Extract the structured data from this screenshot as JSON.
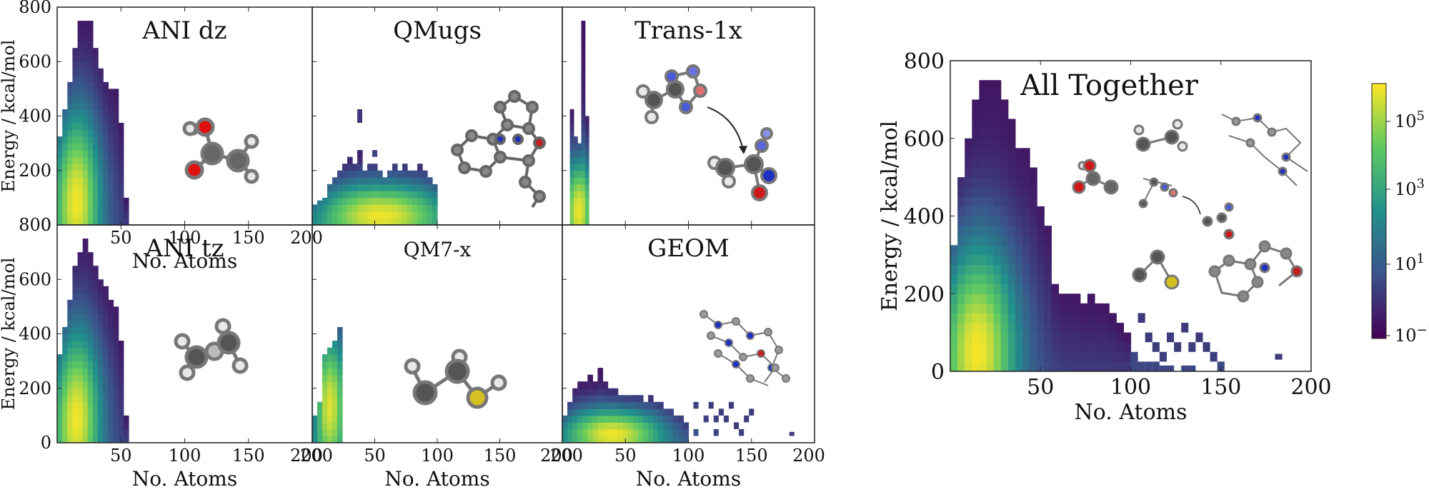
{
  "figure": {
    "colorbar": {
      "scale": "log",
      "tick_labels": [
        "10^5",
        "10^3",
        "10^1",
        "10^−1"
      ],
      "colormap": "viridis",
      "colors": [
        "#440154",
        "#3b528b",
        "#21918c",
        "#5ec962",
        "#fde725"
      ]
    }
  },
  "chart_data": [
    {
      "type": "heatmap",
      "title": "ANI dz",
      "xlabel": "No. Atoms",
      "ylabel": "Energy / kcal/mol",
      "xlim": [
        0,
        200
      ],
      "ylim": [
        0,
        800
      ],
      "xticks": [
        "50",
        "100",
        "150",
        "200"
      ],
      "yticks": [
        "0",
        "200",
        "400",
        "600",
        "800"
      ],
      "show_xlabel": true,
      "show_ylabel": true,
      "show_xticklabels": true,
      "show_yticklabels": true,
      "bin_x": 4,
      "bin_y": 25,
      "cols": [
        {
          "x0": 0,
          "x1": 4,
          "top": 325
        },
        {
          "x0": 4,
          "x1": 8,
          "top": 425
        },
        {
          "x0": 8,
          "x1": 12,
          "top": 525
        },
        {
          "x0": 12,
          "x1": 16,
          "top": 650
        },
        {
          "x0": 16,
          "x1": 20,
          "top": 750
        },
        {
          "x0": 20,
          "x1": 24,
          "top": 750
        },
        {
          "x0": 24,
          "x1": 28,
          "top": 750
        },
        {
          "x0": 28,
          "x1": 32,
          "top": 650
        },
        {
          "x0": 32,
          "x1": 36,
          "top": 575
        },
        {
          "x0": 36,
          "x1": 40,
          "top": 525
        },
        {
          "x0": 40,
          "x1": 44,
          "top": 500
        },
        {
          "x0": 44,
          "x1": 48,
          "top": 500
        },
        {
          "x0": 48,
          "x1": 52,
          "top": 375
        },
        {
          "x0": 52,
          "x1": 56,
          "top": 100
        }
      ],
      "peak": {
        "x": 15,
        "y": 100,
        "rx": 14,
        "ry": 240
      }
    },
    {
      "type": "heatmap",
      "title": "QMugs",
      "xlabel": "No. Atoms",
      "ylabel": "Energy / kcal/mol",
      "xlim": [
        0,
        200
      ],
      "ylim": [
        0,
        800
      ],
      "xticks": [
        "50",
        "100",
        "150",
        "200"
      ],
      "yticks": [
        "0",
        "200",
        "400",
        "600",
        "800"
      ],
      "show_xlabel": false,
      "show_ylabel": false,
      "show_xticklabels": false,
      "show_yticklabels": false,
      "bin_x": 4,
      "bin_y": 25,
      "cols": [
        {
          "x0": 0,
          "x1": 4,
          "top": 75
        },
        {
          "x0": 4,
          "x1": 8,
          "top": 90
        },
        {
          "x0": 8,
          "x1": 12,
          "top": 100
        },
        {
          "x0": 12,
          "x1": 16,
          "top": 150
        },
        {
          "x0": 16,
          "x1": 20,
          "top": 175
        },
        {
          "x0": 20,
          "x1": 24,
          "top": 200
        },
        {
          "x0": 24,
          "x1": 28,
          "top": 225
        },
        {
          "x0": 28,
          "x1": 32,
          "top": 250
        },
        {
          "x0": 32,
          "x1": 36,
          "top": 225
        },
        {
          "x0": 36,
          "x1": 40,
          "top": 275
        },
        {
          "x0": 40,
          "x1": 44,
          "top": 200
        },
        {
          "x0": 44,
          "x1": 48,
          "top": 225
        },
        {
          "x0": 48,
          "x1": 52,
          "top": 225
        },
        {
          "x0": 52,
          "x1": 56,
          "top": 200
        },
        {
          "x0": 56,
          "x1": 60,
          "top": 175
        },
        {
          "x0": 60,
          "x1": 64,
          "top": 200
        },
        {
          "x0": 64,
          "x1": 68,
          "top": 225
        },
        {
          "x0": 68,
          "x1": 72,
          "top": 200
        },
        {
          "x0": 72,
          "x1": 76,
          "top": 225
        },
        {
          "x0": 76,
          "x1": 80,
          "top": 200
        },
        {
          "x0": 80,
          "x1": 84,
          "top": 200
        },
        {
          "x0": 84,
          "x1": 88,
          "top": 225
        },
        {
          "x0": 88,
          "x1": 92,
          "top": 200
        },
        {
          "x0": 92,
          "x1": 96,
          "top": 175
        },
        {
          "x0": 96,
          "x1": 100,
          "top": 150
        }
      ],
      "outliers": [
        {
          "x0": 36,
          "x1": 40,
          "y0": 375,
          "y1": 425
        },
        {
          "x0": 48,
          "x1": 52,
          "y0": 250,
          "y1": 275
        }
      ],
      "peak": {
        "x": 55,
        "y": 40,
        "rx": 40,
        "ry": 90
      }
    },
    {
      "type": "heatmap",
      "title": "Trans-1x",
      "xlabel": "No. Atoms",
      "ylabel": "Energy / kcal/mol",
      "xlim": [
        0,
        200
      ],
      "ylim": [
        0,
        800
      ],
      "xticks": [
        "50",
        "100",
        "150",
        "200"
      ],
      "yticks": [
        "0",
        "200",
        "400",
        "600",
        "800"
      ],
      "show_xlabel": false,
      "show_ylabel": false,
      "show_xticklabels": false,
      "show_yticklabels": false,
      "bin_x": 3,
      "bin_y": 25,
      "cols": [
        {
          "x0": 6,
          "x1": 9,
          "top": 425
        },
        {
          "x0": 9,
          "x1": 12,
          "top": 325
        },
        {
          "x0": 12,
          "x1": 15,
          "top": 300
        },
        {
          "x0": 15,
          "x1": 18,
          "top": 750
        },
        {
          "x0": 18,
          "x1": 21,
          "top": 400
        }
      ],
      "peak": {
        "x": 13,
        "y": 60,
        "rx": 8,
        "ry": 140
      }
    },
    {
      "type": "heatmap",
      "title": "ANI tz",
      "xlabel": "No. Atoms",
      "ylabel": "Energy / kcal/mol",
      "xlim": [
        0,
        200
      ],
      "ylim": [
        0,
        800
      ],
      "xticks": [
        "50",
        "100",
        "150",
        "200"
      ],
      "yticks": [
        "0",
        "200",
        "400",
        "600",
        "800"
      ],
      "show_xlabel": true,
      "show_ylabel": true,
      "show_xticklabels": true,
      "show_yticklabels": true,
      "bin_x": 4,
      "bin_y": 25,
      "cols": [
        {
          "x0": 0,
          "x1": 4,
          "top": 325
        },
        {
          "x0": 4,
          "x1": 8,
          "top": 425
        },
        {
          "x0": 8,
          "x1": 12,
          "top": 525
        },
        {
          "x0": 12,
          "x1": 16,
          "top": 650
        },
        {
          "x0": 16,
          "x1": 20,
          "top": 700
        },
        {
          "x0": 20,
          "x1": 24,
          "top": 750
        },
        {
          "x0": 24,
          "x1": 28,
          "top": 700
        },
        {
          "x0": 28,
          "x1": 32,
          "top": 650
        },
        {
          "x0": 32,
          "x1": 36,
          "top": 600
        },
        {
          "x0": 36,
          "x1": 40,
          "top": 575
        },
        {
          "x0": 40,
          "x1": 44,
          "top": 525
        },
        {
          "x0": 44,
          "x1": 48,
          "top": 500
        },
        {
          "x0": 48,
          "x1": 52,
          "top": 375
        },
        {
          "x0": 52,
          "x1": 56,
          "top": 100
        }
      ],
      "peak": {
        "x": 15,
        "y": 100,
        "rx": 14,
        "ry": 240
      }
    },
    {
      "type": "heatmap",
      "title": "QM7-x",
      "xlabel": "No. Atoms",
      "ylabel": "Energy / kcal/mol",
      "xlim": [
        0,
        200
      ],
      "ylim": [
        0,
        800
      ],
      "xticks": [
        "200",
        "50",
        "100",
        "150",
        "200"
      ],
      "yticks": [
        "0",
        "200",
        "400",
        "600",
        "800"
      ],
      "show_xlabel": true,
      "show_ylabel": false,
      "show_xticklabels": true,
      "show_yticklabels": false,
      "bin_x": 4,
      "bin_y": 25,
      "cols": [
        {
          "x0": 0,
          "x1": 4,
          "top": 100
        },
        {
          "x0": 4,
          "x1": 8,
          "top": 150
        },
        {
          "x0": 8,
          "x1": 12,
          "top": 325
        },
        {
          "x0": 12,
          "x1": 16,
          "top": 350
        },
        {
          "x0": 16,
          "x1": 20,
          "top": 375
        },
        {
          "x0": 20,
          "x1": 24,
          "top": 425
        }
      ],
      "peak": {
        "x": 14,
        "y": 150,
        "rx": 10,
        "ry": 200
      }
    },
    {
      "type": "heatmap",
      "title": "GEOM",
      "xlabel": "No. Atoms",
      "ylabel": "Energy / kcal/mol",
      "xlim": [
        0,
        200
      ],
      "ylim": [
        0,
        800
      ],
      "xticks": [
        "200",
        "50",
        "100",
        "150",
        "200"
      ],
      "yticks": [
        "0",
        "200",
        "400",
        "600",
        "800"
      ],
      "show_xlabel": true,
      "show_ylabel": false,
      "show_xticklabels": true,
      "show_yticklabels": false,
      "bin_x": 4,
      "bin_y": 25,
      "cols": [
        {
          "x0": 0,
          "x1": 4,
          "top": 100
        },
        {
          "x0": 4,
          "x1": 8,
          "top": 150
        },
        {
          "x0": 8,
          "x1": 12,
          "top": 200
        },
        {
          "x0": 12,
          "x1": 16,
          "top": 225
        },
        {
          "x0": 16,
          "x1": 20,
          "top": 225
        },
        {
          "x0": 20,
          "x1": 24,
          "top": 250
        },
        {
          "x0": 24,
          "x1": 28,
          "top": 225
        },
        {
          "x0": 28,
          "x1": 32,
          "top": 275
        },
        {
          "x0": 32,
          "x1": 36,
          "top": 225
        },
        {
          "x0": 36,
          "x1": 40,
          "top": 200
        },
        {
          "x0": 40,
          "x1": 44,
          "top": 200
        },
        {
          "x0": 44,
          "x1": 48,
          "top": 175
        },
        {
          "x0": 48,
          "x1": 52,
          "top": 175
        },
        {
          "x0": 52,
          "x1": 56,
          "top": 175
        },
        {
          "x0": 56,
          "x1": 60,
          "top": 175
        },
        {
          "x0": 60,
          "x1": 64,
          "top": 175
        },
        {
          "x0": 64,
          "x1": 68,
          "top": 150
        },
        {
          "x0": 68,
          "x1": 72,
          "top": 175
        },
        {
          "x0": 72,
          "x1": 76,
          "top": 150
        },
        {
          "x0": 76,
          "x1": 80,
          "top": 150
        },
        {
          "x0": 80,
          "x1": 84,
          "top": 125
        },
        {
          "x0": 84,
          "x1": 88,
          "top": 125
        },
        {
          "x0": 88,
          "x1": 92,
          "top": 100
        },
        {
          "x0": 92,
          "x1": 96,
          "top": 100
        },
        {
          "x0": 96,
          "x1": 100,
          "top": 75
        }
      ],
      "outliers": [
        {
          "x0": 104,
          "x1": 108,
          "y0": 125,
          "y1": 150
        },
        {
          "x0": 112,
          "x1": 116,
          "y0": 75,
          "y1": 100
        },
        {
          "x0": 116,
          "x1": 120,
          "y0": 125,
          "y1": 150
        },
        {
          "x0": 120,
          "x1": 124,
          "y0": 75,
          "y1": 100
        },
        {
          "x0": 124,
          "x1": 128,
          "y0": 100,
          "y1": 125
        },
        {
          "x0": 128,
          "x1": 132,
          "y0": 75,
          "y1": 100
        },
        {
          "x0": 132,
          "x1": 136,
          "y0": 125,
          "y1": 150
        },
        {
          "x0": 136,
          "x1": 140,
          "y0": 50,
          "y1": 75
        },
        {
          "x0": 144,
          "x1": 148,
          "y0": 75,
          "y1": 100
        },
        {
          "x0": 148,
          "x1": 152,
          "y0": 100,
          "y1": 125
        },
        {
          "x0": 104,
          "x1": 108,
          "y0": 25,
          "y1": 50
        },
        {
          "x0": 120,
          "x1": 124,
          "y0": 25,
          "y1": 50
        },
        {
          "x0": 140,
          "x1": 144,
          "y0": 25,
          "y1": 50
        },
        {
          "x0": 180,
          "x1": 184,
          "y0": 25,
          "y1": 40
        }
      ],
      "peak": {
        "x": 40,
        "y": 35,
        "rx": 30,
        "ry": 70
      }
    },
    {
      "type": "heatmap",
      "title": "All Together",
      "xlabel": "No. Atoms",
      "ylabel": "Energy / kcal/mol",
      "xlim": [
        0,
        200
      ],
      "ylim": [
        0,
        800
      ],
      "xticks": [
        "50",
        "100",
        "150",
        "200"
      ],
      "yticks": [
        "0",
        "200",
        "400",
        "600",
        "800"
      ],
      "show_xlabel": true,
      "show_ylabel": true,
      "show_xticklabels": true,
      "show_yticklabels": true,
      "bin_x": 4,
      "bin_y": 25,
      "cols": [
        {
          "x0": 0,
          "x1": 4,
          "top": 325
        },
        {
          "x0": 4,
          "x1": 8,
          "top": 500
        },
        {
          "x0": 8,
          "x1": 12,
          "top": 600
        },
        {
          "x0": 12,
          "x1": 16,
          "top": 700
        },
        {
          "x0": 16,
          "x1": 20,
          "top": 750
        },
        {
          "x0": 20,
          "x1": 24,
          "top": 750
        },
        {
          "x0": 24,
          "x1": 28,
          "top": 750
        },
        {
          "x0": 28,
          "x1": 32,
          "top": 700
        },
        {
          "x0": 32,
          "x1": 36,
          "top": 650
        },
        {
          "x0": 36,
          "x1": 40,
          "top": 575
        },
        {
          "x0": 40,
          "x1": 44,
          "top": 575
        },
        {
          "x0": 44,
          "x1": 48,
          "top": 525
        },
        {
          "x0": 48,
          "x1": 52,
          "top": 425
        },
        {
          "x0": 52,
          "x1": 56,
          "top": 375
        },
        {
          "x0": 56,
          "x1": 60,
          "top": 225
        },
        {
          "x0": 60,
          "x1": 64,
          "top": 200
        },
        {
          "x0": 64,
          "x1": 68,
          "top": 200
        },
        {
          "x0": 68,
          "x1": 72,
          "top": 200
        },
        {
          "x0": 72,
          "x1": 76,
          "top": 175
        },
        {
          "x0": 76,
          "x1": 80,
          "top": 200
        },
        {
          "x0": 80,
          "x1": 84,
          "top": 175
        },
        {
          "x0": 84,
          "x1": 88,
          "top": 175
        },
        {
          "x0": 88,
          "x1": 92,
          "top": 150
        },
        {
          "x0": 92,
          "x1": 96,
          "top": 125
        },
        {
          "x0": 96,
          "x1": 100,
          "top": 100
        }
      ],
      "outliers": [
        {
          "x0": 104,
          "x1": 108,
          "y0": 125,
          "y1": 150
        },
        {
          "x0": 108,
          "x1": 112,
          "y0": 75,
          "y1": 100
        },
        {
          "x0": 112,
          "x1": 116,
          "y0": 50,
          "y1": 75
        },
        {
          "x0": 116,
          "x1": 120,
          "y0": 25,
          "y1": 50
        },
        {
          "x0": 120,
          "x1": 124,
          "y0": 75,
          "y1": 100
        },
        {
          "x0": 124,
          "x1": 128,
          "y0": 50,
          "y1": 75
        },
        {
          "x0": 128,
          "x1": 132,
          "y0": 100,
          "y1": 125
        },
        {
          "x0": 132,
          "x1": 136,
          "y0": 50,
          "y1": 75
        },
        {
          "x0": 136,
          "x1": 140,
          "y0": 75,
          "y1": 100
        },
        {
          "x0": 140,
          "x1": 144,
          "y0": 50,
          "y1": 75
        },
        {
          "x0": 144,
          "x1": 148,
          "y0": 25,
          "y1": 50
        },
        {
          "x0": 148,
          "x1": 152,
          "y0": 0,
          "y1": 25
        },
        {
          "x0": 100,
          "x1": 104,
          "y0": 0,
          "y1": 50
        },
        {
          "x0": 104,
          "x1": 108,
          "y0": 0,
          "y1": 25
        },
        {
          "x0": 108,
          "x1": 112,
          "y0": 0,
          "y1": 25
        },
        {
          "x0": 112,
          "x1": 116,
          "y0": 0,
          "y1": 25
        },
        {
          "x0": 116,
          "x1": 120,
          "y0": 0,
          "y1": 15
        },
        {
          "x0": 120,
          "x1": 124,
          "y0": 0,
          "y1": 15
        },
        {
          "x0": 128,
          "x1": 132,
          "y0": 0,
          "y1": 15
        },
        {
          "x0": 132,
          "x1": 136,
          "y0": 0,
          "y1": 15
        },
        {
          "x0": 180,
          "x1": 184,
          "y0": 30,
          "y1": 45
        }
      ],
      "peak": {
        "x": 15,
        "y": 60,
        "rx": 16,
        "ry": 200
      }
    }
  ]
}
